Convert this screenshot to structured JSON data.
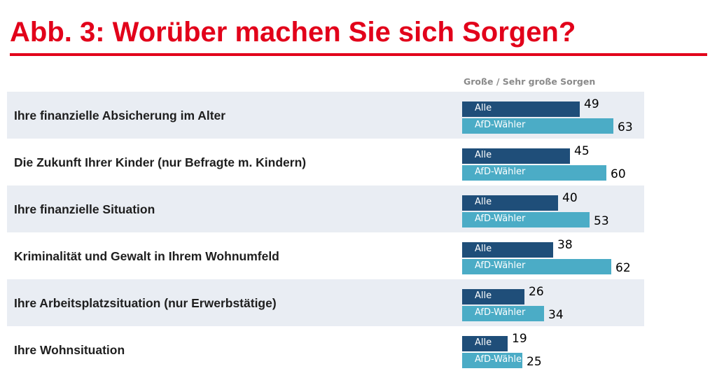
{
  "colors": {
    "title": "#e2001a",
    "rule": "#e2001a",
    "alle": "#1f4e79",
    "afd": "#4bacc6"
  },
  "chart_data": {
    "type": "bar",
    "orientation": "horizontal",
    "title": "Abb. 3: Worüber machen Sie sich Sorgen?",
    "column_header": "Große / Sehr große Sorgen",
    "series_labels": [
      "Alle",
      "AfD-Wähler"
    ],
    "categories": [
      "Ihre finanzielle Absicherung im Alter",
      "Die Zukunft Ihrer Kinder (nur Befragte m. Kindern)",
      "Ihre finanzielle Situation",
      "Kriminalität und Gewalt in Ihrem Wohnumfeld",
      "Ihre Arbeitsplatzsituation (nur Erwerbstätige)",
      "Ihre Wohnsituation"
    ],
    "series": [
      {
        "name": "Alle",
        "values": [
          49,
          45,
          40,
          38,
          26,
          19
        ]
      },
      {
        "name": "AfD-Wähler",
        "values": [
          63,
          60,
          53,
          62,
          34,
          25
        ]
      }
    ],
    "xlim": [
      0,
      63
    ],
    "grid": false,
    "legend": "none"
  }
}
